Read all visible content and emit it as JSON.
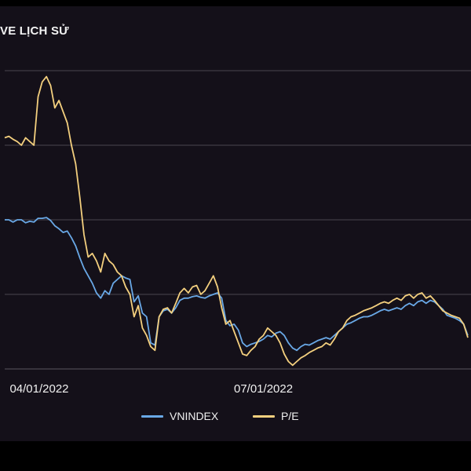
{
  "chart_data": {
    "type": "line",
    "title": "VE LỊCH SỬ",
    "xlabel": "",
    "ylabel": "",
    "x_ticks": [
      {
        "label": "04/01/2022",
        "index": 0
      },
      {
        "label": "07/01/2022",
        "index": 62
      }
    ],
    "ylim": [
      0,
      4
    ],
    "grid": true,
    "legend_position": "bottom-center",
    "series": [
      {
        "name": "VNINDEX",
        "color": "#69a8e6",
        "values": [
          2.0,
          2.0,
          1.97,
          2.0,
          2.0,
          1.96,
          1.98,
          1.97,
          2.02,
          2.02,
          2.03,
          1.99,
          1.92,
          1.88,
          1.83,
          1.85,
          1.76,
          1.65,
          1.49,
          1.35,
          1.25,
          1.15,
          1.02,
          0.95,
          1.05,
          1.0,
          1.15,
          1.2,
          1.25,
          1.22,
          1.2,
          0.9,
          0.98,
          0.75,
          0.7,
          0.35,
          0.32,
          0.7,
          0.78,
          0.8,
          0.75,
          0.82,
          0.92,
          0.95,
          0.95,
          0.97,
          0.98,
          0.96,
          0.95,
          0.98,
          1.0,
          1.02,
          0.95,
          0.65,
          0.58,
          0.6,
          0.52,
          0.35,
          0.3,
          0.33,
          0.35,
          0.37,
          0.4,
          0.45,
          0.43,
          0.48,
          0.5,
          0.45,
          0.35,
          0.28,
          0.25,
          0.3,
          0.33,
          0.32,
          0.35,
          0.38,
          0.4,
          0.42,
          0.4,
          0.45,
          0.5,
          0.55,
          0.6,
          0.62,
          0.65,
          0.68,
          0.7,
          0.7,
          0.72,
          0.75,
          0.78,
          0.8,
          0.78,
          0.8,
          0.82,
          0.8,
          0.85,
          0.88,
          0.85,
          0.9,
          0.92,
          0.88,
          0.92,
          0.9,
          0.85,
          0.8,
          0.72,
          0.7,
          0.68,
          0.65,
          0.6,
          0.45
        ]
      },
      {
        "name": "P/E",
        "color": "#f3cf7e",
        "values": [
          3.1,
          3.12,
          3.08,
          3.05,
          3.0,
          3.1,
          3.05,
          3.0,
          3.65,
          3.85,
          3.92,
          3.8,
          3.5,
          3.6,
          3.45,
          3.3,
          3.0,
          2.75,
          2.3,
          1.8,
          1.5,
          1.55,
          1.45,
          1.3,
          1.55,
          1.45,
          1.4,
          1.3,
          1.25,
          1.1,
          1.0,
          0.7,
          0.85,
          0.55,
          0.45,
          0.3,
          0.25,
          0.7,
          0.8,
          0.82,
          0.75,
          0.88,
          1.02,
          1.08,
          1.02,
          1.1,
          1.12,
          1.0,
          1.05,
          1.15,
          1.25,
          1.1,
          0.82,
          0.6,
          0.65,
          0.5,
          0.35,
          0.2,
          0.18,
          0.25,
          0.3,
          0.4,
          0.45,
          0.55,
          0.5,
          0.45,
          0.35,
          0.2,
          0.1,
          0.05,
          0.1,
          0.15,
          0.18,
          0.22,
          0.25,
          0.28,
          0.3,
          0.35,
          0.32,
          0.4,
          0.5,
          0.55,
          0.65,
          0.7,
          0.72,
          0.75,
          0.78,
          0.8,
          0.82,
          0.85,
          0.88,
          0.9,
          0.88,
          0.92,
          0.95,
          0.92,
          0.98,
          1.0,
          0.95,
          1.0,
          1.02,
          0.95,
          0.98,
          0.92,
          0.85,
          0.78,
          0.75,
          0.72,
          0.7,
          0.68,
          0.6,
          0.42
        ]
      }
    ]
  }
}
